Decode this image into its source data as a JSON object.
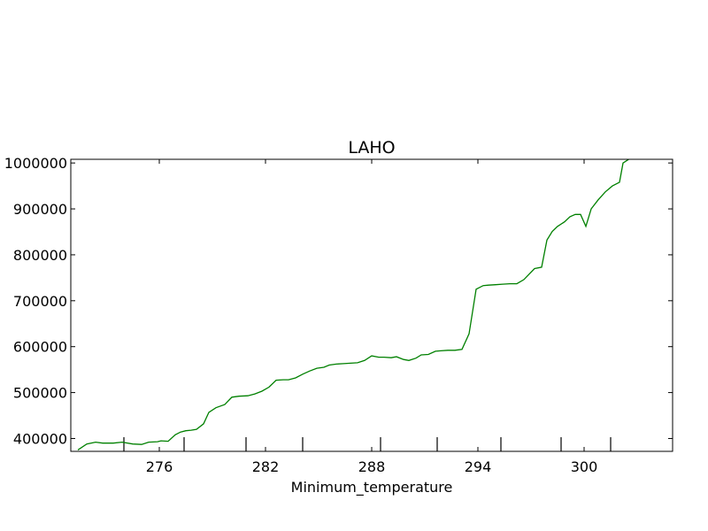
{
  "chart_data": {
    "type": "line",
    "title": "LAHO",
    "xlabel": "Minimum_temperature",
    "ylabel": "",
    "xlim": [
      271,
      305
    ],
    "ylim": [
      372000,
      1008000
    ],
    "x_ticks": [
      276,
      282,
      288,
      294,
      300
    ],
    "x_tick_labels": [
      "276",
      "282",
      "288",
      "294",
      "300"
    ],
    "y_ticks": [
      400000,
      500000,
      600000,
      700000,
      800000,
      900000,
      1000000
    ],
    "y_tick_labels": [
      "400000",
      "500000",
      "600000",
      "700000",
      "800000",
      "900000",
      "1000000"
    ],
    "rug_x": [
      274.0,
      277.4,
      280.9,
      284.1,
      288.5,
      291.7,
      295.3,
      298.7,
      301.5
    ],
    "grid": false,
    "line_color": "#008000",
    "series": [
      {
        "x": [
          271.4,
          271.9,
          272.4,
          272.8,
          273.4,
          273.9,
          274.5,
          275.0,
          275.4,
          275.9,
          276.1,
          276.5,
          276.9,
          277.2,
          277.5,
          277.8,
          278.1,
          278.5,
          278.8,
          279.2,
          279.7,
          280.1,
          280.5,
          281.0,
          281.4,
          281.8,
          282.2,
          282.6,
          283.0,
          283.3,
          283.7,
          284.1,
          284.5,
          284.9,
          285.3,
          285.6,
          286.0,
          286.4,
          286.8,
          287.2,
          287.6,
          288.0,
          288.4,
          288.7,
          289.1,
          289.4,
          289.8,
          290.1,
          290.5,
          290.8,
          291.2,
          291.6,
          291.9,
          292.3,
          292.7,
          293.1,
          293.5,
          293.9,
          294.3,
          294.6,
          295.0,
          295.4,
          295.8,
          296.2,
          296.6,
          296.9,
          297.2,
          297.6,
          297.9,
          298.2,
          298.5,
          298.9,
          299.2,
          299.5,
          299.8,
          300.1,
          300.4,
          300.8,
          301.2,
          301.6,
          302.0,
          302.2,
          302.6
        ],
        "values": [
          375000,
          388000,
          392000,
          390000,
          390000,
          392000,
          388000,
          387000,
          392000,
          393000,
          395000,
          394000,
          408000,
          414000,
          417000,
          418000,
          420000,
          432000,
          457000,
          467000,
          474000,
          490000,
          492000,
          493000,
          497000,
          503000,
          512000,
          527000,
          528000,
          528000,
          532000,
          540000,
          547000,
          553000,
          555000,
          560000,
          562000,
          563000,
          564000,
          565000,
          570000,
          580000,
          577000,
          577000,
          576000,
          578000,
          572000,
          570000,
          575000,
          582000,
          583000,
          590000,
          591000,
          592000,
          592000,
          594000,
          628000,
          725000,
          733000,
          734000,
          735000,
          736000,
          737000,
          737000,
          746000,
          758000,
          770000,
          773000,
          832000,
          851000,
          862000,
          872000,
          883000,
          888000,
          888000,
          862000,
          900000,
          920000,
          937000,
          950000,
          958000,
          1000000,
          1010000
        ]
      }
    ]
  }
}
